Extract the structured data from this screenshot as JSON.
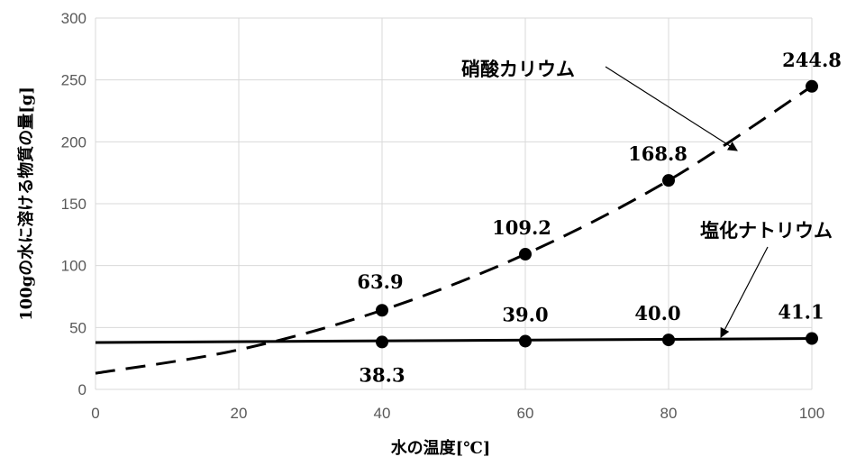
{
  "chart_data": {
    "type": "scatter",
    "xlabel": "水の温度[℃]",
    "ylabel": "100gの水に溶ける物質の量[g]",
    "xlim": [
      0,
      100
    ],
    "ylim": [
      0,
      300
    ],
    "xticks": [
      0,
      20,
      40,
      60,
      80,
      100
    ],
    "yticks": [
      0,
      50,
      100,
      150,
      200,
      250,
      300
    ],
    "grid": true,
    "series": [
      {
        "name": "硝酸カリウム",
        "line_style": "dashed",
        "points": [
          {
            "x": 40,
            "y": 63.9,
            "label": "63.9"
          },
          {
            "x": 60,
            "y": 109.2,
            "label": "109.2"
          },
          {
            "x": 80,
            "y": 168.8,
            "label": "168.8"
          },
          {
            "x": 100,
            "y": 244.8,
            "label": "244.8"
          }
        ],
        "curve": [
          {
            "x": 0,
            "y": 13
          },
          {
            "x": 20,
            "y": 32
          },
          {
            "x": 40,
            "y": 63.9
          },
          {
            "x": 60,
            "y": 109.2
          },
          {
            "x": 80,
            "y": 168.8
          },
          {
            "x": 100,
            "y": 244.8
          }
        ]
      },
      {
        "name": "塩化ナトリウム",
        "line_style": "solid",
        "points": [
          {
            "x": 40,
            "y": 38.3,
            "label": "38.3"
          },
          {
            "x": 60,
            "y": 39.0,
            "label": "39.0"
          },
          {
            "x": 80,
            "y": 40.0,
            "label": "40.0"
          },
          {
            "x": 100,
            "y": 41.1,
            "label": "41.1"
          }
        ],
        "curve": [
          {
            "x": 0,
            "y": 37.9
          },
          {
            "x": 100,
            "y": 41.1
          }
        ]
      }
    ]
  }
}
